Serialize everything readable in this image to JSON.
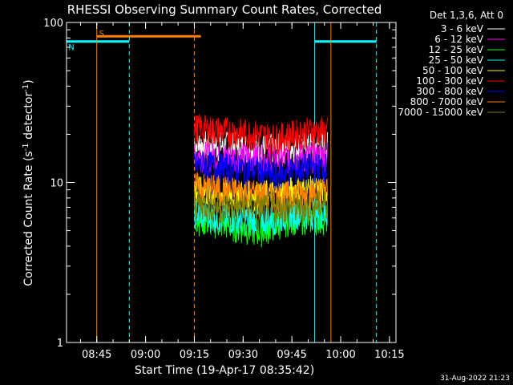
{
  "chart_data": {
    "type": "line",
    "title": "RHESSI Observing Summary Count Rates, Corrected",
    "xlabel": "Start Time (19-Apr-17 08:35:42)",
    "ylabel": "Corrected Count Rate (s",
    "ylabel_sup1": "-1",
    "ylabel_mid": " detector",
    "ylabel_sup2": "-1",
    "ylabel_end": ")",
    "yscale": "log",
    "ylim": [
      1,
      100
    ],
    "xlim": [
      "08:35:42",
      "10:17:00"
    ],
    "x_ticks": [
      "08:45",
      "09:00",
      "09:15",
      "09:30",
      "09:45",
      "10:00",
      "10:15"
    ],
    "y_ticks": [
      "1",
      "10",
      "100"
    ],
    "legend_title": "Det 1,3,6, Att 0",
    "legend_position": "top-right",
    "series": [
      {
        "name": "3 - 6 keV",
        "color": "#ffffff",
        "values": [
          17.5,
          17,
          16.5,
          16.5,
          17,
          17,
          17
        ]
      },
      {
        "name": "6 - 12 keV",
        "color": "#ff00ff",
        "values": [
          15,
          14.5,
          14.5,
          14,
          14.5,
          14.5,
          15
        ]
      },
      {
        "name": "12 - 25 keV",
        "color": "#00ff00",
        "values": [
          6,
          5.5,
          5,
          5.5,
          6,
          6,
          6
        ]
      },
      {
        "name": "25 - 50 keV",
        "color": "#00ffff",
        "values": [
          6.5,
          6,
          6,
          6,
          6.5,
          6.5,
          6.5
        ]
      },
      {
        "name": "50 - 100 keV",
        "color": "#ffff00",
        "values": [
          9,
          8.5,
          8.5,
          8.5,
          9,
          9,
          9
        ]
      },
      {
        "name": "100 - 300 keV",
        "color": "#ff0000",
        "values": [
          22,
          21,
          20,
          19,
          20,
          21,
          21
        ]
      },
      {
        "name": "300 - 800 keV",
        "color": "#0000ff",
        "values": [
          13,
          12.5,
          12,
          11,
          12,
          12.5,
          12.5
        ]
      },
      {
        "name": "800 - 7000 keV",
        "color": "#ff8000",
        "values": [
          9.5,
          9,
          8.5,
          8,
          8.5,
          8.5,
          9
        ]
      },
      {
        "name": "7000 - 15000 keV",
        "color": "#808000",
        "values": [
          7.5,
          7,
          7,
          7,
          7,
          7,
          7.5
        ]
      }
    ],
    "series_x": [
      "09:15",
      "09:25",
      "09:35",
      "09:40",
      "09:45",
      "09:50",
      "09:56"
    ],
    "flags": [
      {
        "label": "S",
        "color": "#ff8000",
        "start": "08:45",
        "end": "09:17",
        "level": 82
      },
      {
        "label": "N",
        "color": "#00ffff",
        "start": "08:35:42",
        "end": "08:55",
        "level": 76
      },
      {
        "label": "",
        "color": "#00ffff",
        "start": "09:52",
        "end": "10:11",
        "level": 76
      }
    ],
    "vertical_markers": [
      {
        "time": "08:45",
        "color": "#ff8000",
        "style": "solid"
      },
      {
        "time": "08:55",
        "color": "#00ffff",
        "style": "dashed"
      },
      {
        "time": "09:15",
        "color": "#ff8000",
        "style": "dashed"
      },
      {
        "time": "09:52",
        "color": "#00ffff",
        "style": "solid"
      },
      {
        "time": "09:57",
        "color": "#ff8000",
        "style": "solid"
      },
      {
        "time": "10:11",
        "color": "#00ffff",
        "style": "dashed"
      },
      {
        "time": "08:35:42",
        "color": "#00ffff",
        "style": "solid"
      }
    ],
    "timestamp": "31-Aug-2022 21:23"
  }
}
